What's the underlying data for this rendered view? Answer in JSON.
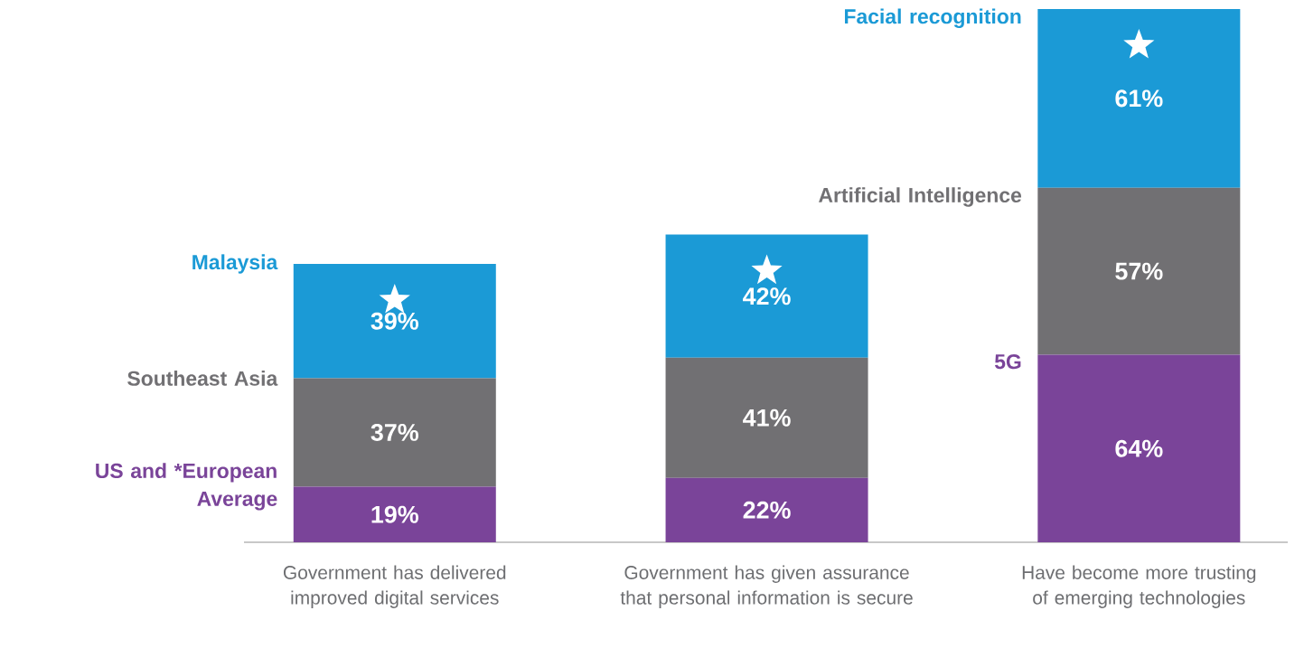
{
  "chart_data": {
    "type": "bar",
    "stacked": true,
    "categories": [
      "Government has delivered improved digital services",
      "Government has given assurance that personal information is secure",
      "Have become more trusting of emerging technologies"
    ],
    "series": [
      {
        "name": "US and *European Average",
        "color": "#7a4499",
        "values": [
          19,
          22,
          64
        ],
        "value_labels": [
          "19%",
          "22%",
          "64%"
        ]
      },
      {
        "name": "Southeast Asia",
        "color": "#717073",
        "values": [
          37,
          41,
          57
        ],
        "value_labels": [
          "37%",
          "41%",
          "57%"
        ]
      },
      {
        "name": "Malaysia",
        "color": "#1b9ad6",
        "values": [
          39,
          42,
          61
        ],
        "value_labels": [
          "39%",
          "42%",
          "61%"
        ]
      }
    ],
    "annotations": [
      "5G",
      "Artificial Intelligence",
      "Facial recognition"
    ]
  }
}
